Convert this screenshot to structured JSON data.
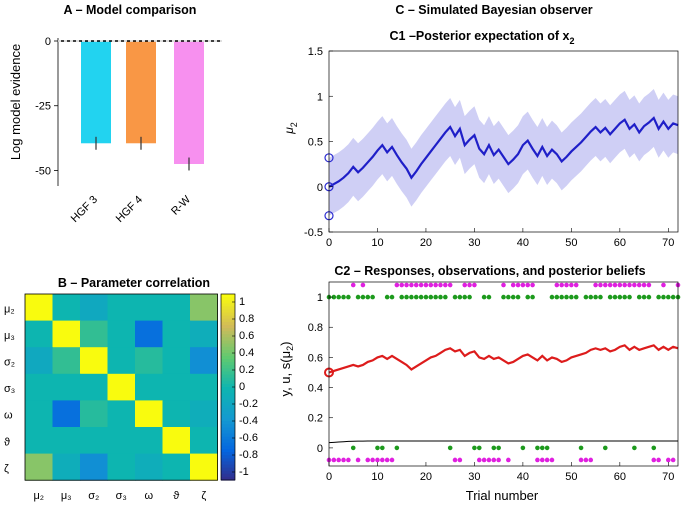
{
  "panel_a": {
    "title": "A – Model comparison",
    "chart_data": {
      "type": "bar",
      "categories": [
        "HGF 3",
        "HGF 4",
        "R-W"
      ],
      "values": [
        -39.5,
        -39.5,
        -47.5
      ],
      "errors": [
        2.5,
        2.5,
        2.5
      ],
      "colors": [
        "#22d3f0",
        "#f99745",
        "#f790ef"
      ],
      "ylabel": "Log model evidence",
      "ylim": [
        -56,
        0
      ],
      "yticks": [
        0,
        -25,
        -50
      ],
      "ytick_labels": [
        "0",
        "-25",
        "-50"
      ]
    }
  },
  "panel_b": {
    "title": "B – Parameter correlation",
    "chart_data": {
      "type": "heatmap",
      "labels": [
        "μ₂",
        "μ₃",
        "σ₂",
        "σ₃",
        "ω",
        "ϑ",
        "ζ"
      ],
      "matrix": [
        [
          1.0,
          0.0,
          -0.15,
          0.0,
          0.0,
          0.0,
          0.45
        ],
        [
          0.0,
          1.0,
          0.15,
          0.0,
          -0.6,
          0.0,
          -0.1
        ],
        [
          -0.15,
          0.15,
          1.0,
          0.0,
          0.1,
          0.0,
          -0.4
        ],
        [
          0.0,
          0.0,
          0.0,
          1.0,
          0.0,
          0.0,
          0.0
        ],
        [
          0.0,
          -0.6,
          0.1,
          0.0,
          1.0,
          0.0,
          -0.1
        ],
        [
          0.0,
          0.0,
          0.0,
          0.0,
          0.0,
          1.0,
          0.0
        ],
        [
          0.45,
          -0.1,
          -0.4,
          0.0,
          -0.1,
          0.0,
          1.0
        ]
      ],
      "colorbar_ticks": [
        "1",
        "0.8",
        "0.6",
        "0.4",
        "0.2",
        "0",
        "-0.2",
        "-0.4",
        "-0.6",
        "-0.8",
        "-1"
      ],
      "clim": [
        -1,
        1
      ]
    }
  },
  "panel_c": {
    "title": "C – Simulated Bayesian observer",
    "c1": {
      "title": "C1 –Posterior expectation of x",
      "title_sub": "2",
      "ylabel": "μ",
      "ylabel_sub": "2",
      "chart_data": {
        "type": "line",
        "x": [
          0,
          1,
          2,
          3,
          4,
          5,
          6,
          7,
          8,
          9,
          10,
          11,
          12,
          13,
          14,
          15,
          16,
          17,
          18,
          19,
          20,
          21,
          22,
          23,
          24,
          25,
          26,
          27,
          28,
          29,
          30,
          31,
          32,
          33,
          34,
          35,
          36,
          37,
          38,
          39,
          40,
          41,
          42,
          43,
          44,
          45,
          46,
          47,
          48,
          49,
          50,
          51,
          52,
          53,
          54,
          55,
          56,
          57,
          58,
          59,
          60,
          61,
          62,
          63,
          64,
          65,
          66,
          67,
          68,
          69,
          70,
          71,
          72
        ],
        "mean": [
          0,
          0.03,
          0.06,
          0.1,
          0.15,
          0.22,
          0.16,
          0.21,
          0.27,
          0.33,
          0.4,
          0.46,
          0.38,
          0.44,
          0.35,
          0.27,
          0.2,
          0.1,
          0.17,
          0.25,
          0.32,
          0.39,
          0.46,
          0.53,
          0.6,
          0.66,
          0.56,
          0.64,
          0.46,
          0.52,
          0.57,
          0.42,
          0.36,
          0.46,
          0.35,
          0.41,
          0.33,
          0.25,
          0.3,
          0.36,
          0.46,
          0.51,
          0.42,
          0.34,
          0.44,
          0.34,
          0.41,
          0.36,
          0.28,
          0.33,
          0.39,
          0.44,
          0.49,
          0.55,
          0.61,
          0.66,
          0.6,
          0.65,
          0.58,
          0.64,
          0.7,
          0.74,
          0.64,
          0.69,
          0.6,
          0.67,
          0.71,
          0.76,
          0.64,
          0.72,
          0.64,
          0.7,
          0.68
        ],
        "band_halfwidth": 0.32,
        "initial_markers": [
          0.32,
          0,
          -0.32
        ],
        "xlim": [
          0,
          72
        ],
        "ylim": [
          -0.5,
          1.5
        ],
        "xticks": [
          0,
          10,
          20,
          30,
          40,
          50,
          60,
          70
        ],
        "yticks": [
          -0.5,
          0,
          0.5,
          1,
          1.5
        ],
        "ytick_labels": [
          "-0.5",
          "0",
          "0.5",
          "1",
          "1.5"
        ],
        "colors": {
          "mean": "#1f1fc8",
          "band": "#cfcff5",
          "marker": "#2a2ad0"
        }
      }
    },
    "c2": {
      "title": "C2 – Responses, observations, and posterior beliefs",
      "xlabel": "Trial number",
      "ylabel_prefix": "y, u, s(μ",
      "ylabel_sub": "2",
      "ylabel_suffix": ")",
      "chart_data": {
        "type": "scatter",
        "x": [
          0,
          1,
          2,
          3,
          4,
          5,
          6,
          7,
          8,
          9,
          10,
          11,
          12,
          13,
          14,
          15,
          16,
          17,
          18,
          19,
          20,
          21,
          22,
          23,
          24,
          25,
          26,
          27,
          28,
          29,
          30,
          31,
          32,
          33,
          34,
          35,
          36,
          37,
          38,
          39,
          40,
          41,
          42,
          43,
          44,
          45,
          46,
          47,
          48,
          49,
          50,
          51,
          52,
          53,
          54,
          55,
          56,
          57,
          58,
          59,
          60,
          61,
          62,
          63,
          64,
          65,
          66,
          67,
          68,
          69,
          70,
          71,
          72
        ],
        "responses_y": [
          0,
          0,
          0,
          0,
          0,
          1,
          0,
          1,
          0,
          0,
          0,
          0,
          0,
          0,
          1,
          1,
          1,
          1,
          1,
          1,
          1,
          1,
          1,
          1,
          1,
          1,
          0,
          0,
          1,
          1,
          1,
          0,
          0,
          0,
          0,
          0,
          1,
          0,
          1,
          1,
          1,
          1,
          1,
          0,
          0,
          0,
          0,
          1,
          1,
          1,
          1,
          1,
          0,
          0,
          0,
          1,
          1,
          1,
          1,
          1,
          1,
          1,
          1,
          1,
          1,
          1,
          1,
          0,
          0,
          1,
          0,
          0,
          1
        ],
        "inputs_u": [
          1,
          1,
          1,
          1,
          1,
          0,
          1,
          1,
          1,
          1,
          0,
          0,
          1,
          1,
          0,
          1,
          1,
          1,
          1,
          1,
          1,
          1,
          1,
          1,
          1,
          0,
          1,
          1,
          1,
          1,
          0,
          0,
          1,
          1,
          0,
          0,
          1,
          1,
          1,
          1,
          0,
          1,
          1,
          0,
          0,
          0,
          1,
          1,
          1,
          1,
          1,
          1,
          0,
          1,
          1,
          1,
          1,
          0,
          1,
          1,
          1,
          1,
          1,
          0,
          1,
          1,
          1,
          0,
          1,
          1,
          1,
          1,
          1
        ],
        "sigmoid_mu2": [
          0.5,
          0.51,
          0.52,
          0.53,
          0.54,
          0.55,
          0.54,
          0.55,
          0.57,
          0.58,
          0.6,
          0.61,
          0.59,
          0.61,
          0.59,
          0.57,
          0.55,
          0.52,
          0.54,
          0.56,
          0.58,
          0.6,
          0.61,
          0.63,
          0.65,
          0.66,
          0.64,
          0.65,
          0.61,
          0.63,
          0.64,
          0.6,
          0.59,
          0.61,
          0.59,
          0.6,
          0.58,
          0.56,
          0.57,
          0.59,
          0.61,
          0.62,
          0.6,
          0.58,
          0.61,
          0.58,
          0.6,
          0.59,
          0.57,
          0.58,
          0.6,
          0.61,
          0.62,
          0.63,
          0.65,
          0.66,
          0.65,
          0.66,
          0.64,
          0.65,
          0.67,
          0.68,
          0.65,
          0.67,
          0.65,
          0.66,
          0.67,
          0.68,
          0.65,
          0.67,
          0.65,
          0.67,
          0.66
        ],
        "second_level_line": [
          0.035,
          0.037,
          0.039,
          0.041,
          0.043,
          0.044,
          0.045,
          0.045,
          0.046,
          0.046,
          0.046,
          0.046,
          0.046,
          0.046,
          0.046,
          0.046,
          0.046,
          0.046,
          0.046,
          0.046,
          0.046,
          0.046,
          0.046,
          0.046,
          0.046,
          0.046,
          0.046,
          0.046,
          0.046,
          0.046,
          0.046,
          0.046,
          0.046,
          0.046,
          0.046,
          0.046,
          0.046,
          0.046,
          0.046,
          0.046,
          0.046,
          0.046,
          0.046,
          0.046,
          0.046,
          0.046,
          0.046,
          0.046,
          0.046,
          0.046,
          0.046,
          0.046,
          0.046,
          0.046,
          0.046,
          0.046,
          0.046,
          0.046,
          0.046,
          0.046,
          0.046,
          0.046,
          0.046,
          0.046,
          0.046,
          0.046,
          0.046,
          0.046,
          0.046,
          0.046,
          0.046,
          0.046,
          0.046
        ],
        "xlim": [
          0,
          72
        ],
        "ylim": [
          -0.12,
          1.1
        ],
        "xticks": [
          0,
          10,
          20,
          30,
          40,
          50,
          60,
          70
        ],
        "yticks": [
          0,
          0.2,
          0.4,
          0.6,
          0.8,
          1
        ],
        "ytick_labels": [
          "0",
          "0.2",
          "0.4",
          "0.6",
          "0.8",
          "1"
        ],
        "colors": {
          "responses": "#e020e0",
          "inputs": "#1d9a1d",
          "belief": "#dd1c1c",
          "line2": "#000000"
        }
      }
    }
  }
}
